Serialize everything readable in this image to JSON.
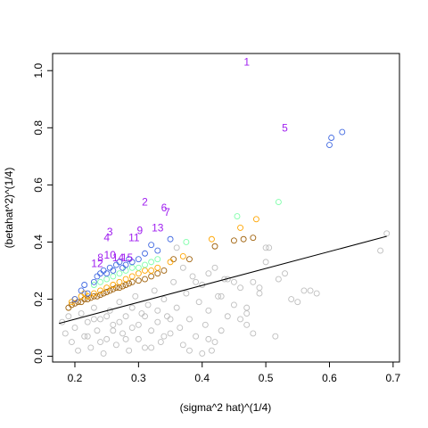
{
  "chart_data": {
    "type": "scatter",
    "title": "",
    "xlabel": "(sigma^2 hat)^(1/4)",
    "ylabel": "(betahat^2)^(1/4)",
    "xlim": [
      0.165,
      0.71
    ],
    "ylim": [
      -0.02,
      1.06
    ],
    "xticks": [
      0.2,
      0.3,
      0.4,
      0.5,
      0.6,
      0.7
    ],
    "xtick_labels": [
      "0.2",
      "0.3",
      "0.4",
      "0.5",
      "0.6",
      "0.7"
    ],
    "yticks": [
      0.0,
      0.2,
      0.4,
      0.6,
      0.8,
      1.0
    ],
    "ytick_labels": [
      "0.0",
      "0.2",
      "0.4",
      "0.6",
      "0.8",
      "1.0"
    ],
    "grid": false,
    "legend": "none",
    "fit_line": {
      "x": [
        0.175,
        0.69
      ],
      "y": [
        0.115,
        0.42
      ],
      "color": "#000000"
    },
    "colors": {
      "gray": "#bebebe",
      "blue": "#4169e1",
      "green": "#7fffaa",
      "orange": "#ffa500",
      "brown": "#a0620c",
      "purple": "#a020f0",
      "line": "#000000"
    },
    "series": [
      {
        "color": "blue",
        "points": [
          [
            0.2,
            0.2
          ],
          [
            0.21,
            0.23
          ],
          [
            0.215,
            0.25
          ],
          [
            0.22,
            0.22
          ],
          [
            0.23,
            0.26
          ],
          [
            0.235,
            0.28
          ],
          [
            0.24,
            0.29
          ],
          [
            0.245,
            0.3
          ],
          [
            0.25,
            0.29
          ],
          [
            0.255,
            0.31
          ],
          [
            0.26,
            0.3
          ],
          [
            0.265,
            0.32
          ],
          [
            0.27,
            0.33
          ],
          [
            0.275,
            0.31
          ],
          [
            0.28,
            0.32
          ],
          [
            0.285,
            0.34
          ],
          [
            0.29,
            0.33
          ],
          [
            0.3,
            0.34
          ],
          [
            0.31,
            0.36
          ],
          [
            0.32,
            0.39
          ],
          [
            0.33,
            0.37
          ],
          [
            0.35,
            0.41
          ],
          [
            0.6,
            0.74
          ],
          [
            0.603,
            0.765
          ],
          [
            0.62,
            0.785
          ]
        ]
      },
      {
        "color": "green",
        "points": [
          [
            0.23,
            0.25
          ],
          [
            0.24,
            0.26
          ],
          [
            0.25,
            0.27
          ],
          [
            0.26,
            0.28
          ],
          [
            0.27,
            0.29
          ],
          [
            0.28,
            0.3
          ],
          [
            0.29,
            0.31
          ],
          [
            0.3,
            0.31
          ],
          [
            0.31,
            0.32
          ],
          [
            0.32,
            0.33
          ],
          [
            0.33,
            0.34
          ],
          [
            0.375,
            0.4
          ],
          [
            0.455,
            0.49
          ],
          [
            0.52,
            0.54
          ]
        ]
      },
      {
        "color": "orange",
        "points": [
          [
            0.195,
            0.19
          ],
          [
            0.2,
            0.2
          ],
          [
            0.21,
            0.21
          ],
          [
            0.215,
            0.22
          ],
          [
            0.22,
            0.21
          ],
          [
            0.23,
            0.22
          ],
          [
            0.24,
            0.23
          ],
          [
            0.25,
            0.24
          ],
          [
            0.26,
            0.25
          ],
          [
            0.27,
            0.26
          ],
          [
            0.28,
            0.27
          ],
          [
            0.29,
            0.28
          ],
          [
            0.3,
            0.29
          ],
          [
            0.31,
            0.3
          ],
          [
            0.32,
            0.3
          ],
          [
            0.33,
            0.31
          ],
          [
            0.35,
            0.33
          ],
          [
            0.37,
            0.35
          ],
          [
            0.415,
            0.41
          ],
          [
            0.46,
            0.45
          ],
          [
            0.485,
            0.48
          ]
        ]
      },
      {
        "color": "brown",
        "points": [
          [
            0.19,
            0.17
          ],
          [
            0.195,
            0.18
          ],
          [
            0.2,
            0.185
          ],
          [
            0.205,
            0.19
          ],
          [
            0.21,
            0.19
          ],
          [
            0.215,
            0.2
          ],
          [
            0.22,
            0.2
          ],
          [
            0.225,
            0.205
          ],
          [
            0.23,
            0.21
          ],
          [
            0.235,
            0.21
          ],
          [
            0.24,
            0.215
          ],
          [
            0.245,
            0.22
          ],
          [
            0.25,
            0.225
          ],
          [
            0.255,
            0.23
          ],
          [
            0.26,
            0.235
          ],
          [
            0.265,
            0.24
          ],
          [
            0.27,
            0.24
          ],
          [
            0.275,
            0.245
          ],
          [
            0.28,
            0.25
          ],
          [
            0.285,
            0.255
          ],
          [
            0.29,
            0.26
          ],
          [
            0.3,
            0.265
          ],
          [
            0.31,
            0.27
          ],
          [
            0.32,
            0.28
          ],
          [
            0.33,
            0.29
          ],
          [
            0.34,
            0.3
          ],
          [
            0.355,
            0.34
          ],
          [
            0.38,
            0.34
          ],
          [
            0.42,
            0.385
          ],
          [
            0.45,
            0.405
          ],
          [
            0.465,
            0.41
          ],
          [
            0.48,
            0.415
          ]
        ]
      },
      {
        "color": "gray",
        "points": [
          [
            0.18,
            0.12
          ],
          [
            0.185,
            0.08
          ],
          [
            0.19,
            0.14
          ],
          [
            0.195,
            0.05
          ],
          [
            0.2,
            0.1
          ],
          [
            0.205,
            0.02
          ],
          [
            0.21,
            0.15
          ],
          [
            0.215,
            0.07
          ],
          [
            0.22,
            0.12
          ],
          [
            0.225,
            0.03
          ],
          [
            0.23,
            0.17
          ],
          [
            0.235,
            0.09
          ],
          [
            0.24,
            0.13
          ],
          [
            0.245,
            0.01
          ],
          [
            0.25,
            0.06
          ],
          [
            0.255,
            0.16
          ],
          [
            0.26,
            0.11
          ],
          [
            0.265,
            0.04
          ],
          [
            0.27,
            0.19
          ],
          [
            0.275,
            0.08
          ],
          [
            0.28,
            0.14
          ],
          [
            0.285,
            0.02
          ],
          [
            0.29,
            0.1
          ],
          [
            0.295,
            0.21
          ],
          [
            0.3,
            0.06
          ],
          [
            0.305,
            0.15
          ],
          [
            0.31,
            0.03
          ],
          [
            0.315,
            0.18
          ],
          [
            0.32,
            0.09
          ],
          [
            0.325,
            0.23
          ],
          [
            0.33,
            0.12
          ],
          [
            0.335,
            0.05
          ],
          [
            0.34,
            0.2
          ],
          [
            0.345,
            0.14
          ],
          [
            0.35,
            0.08
          ],
          [
            0.355,
            0.26
          ],
          [
            0.36,
            0.17
          ],
          [
            0.365,
            0.1
          ],
          [
            0.37,
            0.04
          ],
          [
            0.375,
            0.22
          ],
          [
            0.38,
            0.13
          ],
          [
            0.385,
            0.28
          ],
          [
            0.39,
            0.07
          ],
          [
            0.395,
            0.19
          ],
          [
            0.4,
            0.25
          ],
          [
            0.405,
            0.11
          ],
          [
            0.41,
            0.16
          ],
          [
            0.415,
            0.02
          ],
          [
            0.42,
            0.31
          ],
          [
            0.425,
            0.21
          ],
          [
            0.43,
            0.09
          ],
          [
            0.435,
            0.27
          ],
          [
            0.44,
            0.14
          ],
          [
            0.45,
            0.18
          ],
          [
            0.46,
            0.24
          ],
          [
            0.47,
            0.15
          ],
          [
            0.48,
            0.08
          ],
          [
            0.49,
            0.22
          ],
          [
            0.5,
            0.38
          ],
          [
            0.505,
            0.38
          ],
          [
            0.515,
            0.07
          ],
          [
            0.53,
            0.29
          ],
          [
            0.56,
            0.23
          ],
          [
            0.57,
            0.23
          ],
          [
            0.68,
            0.37
          ],
          [
            0.69,
            0.43
          ],
          [
            0.4,
            0.01
          ],
          [
            0.38,
            0.02
          ],
          [
            0.41,
            0.06
          ],
          [
            0.42,
            0.05
          ],
          [
            0.44,
            0.27
          ],
          [
            0.45,
            0.26
          ],
          [
            0.47,
            0.17
          ],
          [
            0.48,
            0.26
          ],
          [
            0.49,
            0.24
          ],
          [
            0.5,
            0.33
          ],
          [
            0.52,
            0.27
          ],
          [
            0.54,
            0.2
          ],
          [
            0.55,
            0.19
          ],
          [
            0.58,
            0.22
          ],
          [
            0.36,
            0.38
          ],
          [
            0.37,
            0.31
          ],
          [
            0.39,
            0.26
          ],
          [
            0.41,
            0.29
          ],
          [
            0.43,
            0.21
          ],
          [
            0.46,
            0.13
          ],
          [
            0.47,
            0.11
          ],
          [
            0.22,
            0.07
          ],
          [
            0.23,
            0.13
          ],
          [
            0.24,
            0.05
          ],
          [
            0.25,
            0.14
          ],
          [
            0.26,
            0.09
          ],
          [
            0.27,
            0.12
          ],
          [
            0.28,
            0.06
          ],
          [
            0.29,
            0.17
          ],
          [
            0.3,
            0.11
          ],
          [
            0.31,
            0.14
          ],
          [
            0.32,
            0.03
          ],
          [
            0.33,
            0.16
          ],
          [
            0.34,
            0.07
          ],
          [
            0.35,
            0.13
          ]
        ]
      }
    ],
    "labels": [
      {
        "text": "1",
        "x": 0.47,
        "y": 1.03
      },
      {
        "text": "5",
        "x": 0.53,
        "y": 0.8
      },
      {
        "text": "2",
        "x": 0.31,
        "y": 0.54
      },
      {
        "text": "6",
        "x": 0.34,
        "y": 0.52
      },
      {
        "text": "7",
        "x": 0.345,
        "y": 0.505
      },
      {
        "text": "13",
        "x": 0.33,
        "y": 0.45
      },
      {
        "text": "9",
        "x": 0.302,
        "y": 0.44
      },
      {
        "text": "3",
        "x": 0.255,
        "y": 0.435
      },
      {
        "text": "4",
        "x": 0.25,
        "y": 0.415
      },
      {
        "text": "11",
        "x": 0.293,
        "y": 0.415
      },
      {
        "text": "10",
        "x": 0.255,
        "y": 0.355
      },
      {
        "text": "8",
        "x": 0.24,
        "y": 0.345
      },
      {
        "text": "14",
        "x": 0.268,
        "y": 0.345
      },
      {
        "text": "15",
        "x": 0.282,
        "y": 0.345
      },
      {
        "text": "12",
        "x": 0.235,
        "y": 0.325
      }
    ]
  }
}
